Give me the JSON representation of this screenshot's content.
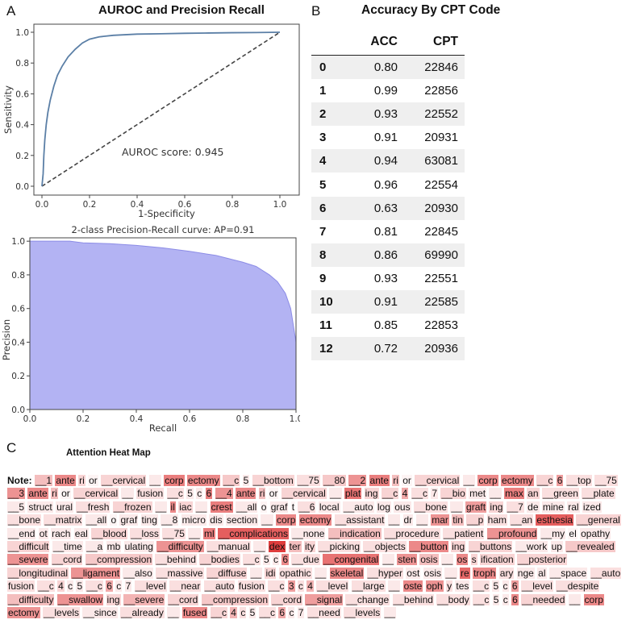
{
  "panels": {
    "a": "A",
    "b": "B",
    "c": "C"
  },
  "chart_data": [
    {
      "type": "line",
      "title": "AUROC and Precision Recall",
      "xlabel": "1-Specificity",
      "ylabel": "Sensitivity",
      "xlim": [
        0,
        1.0
      ],
      "ylim": [
        0,
        1.0
      ],
      "xticks": [
        "0.0",
        "0.2",
        "0.4",
        "0.6",
        "0.8",
        "1.0"
      ],
      "yticks": [
        "0.0",
        "0.2",
        "0.4",
        "0.6",
        "0.8",
        "1.0"
      ],
      "annotation": "AUROC score: 0.945",
      "series": [
        {
          "values": [
            [
              0,
              0
            ],
            [
              0.005,
              0.08
            ],
            [
              0.008,
              0.2
            ],
            [
              0.012,
              0.3
            ],
            [
              0.018,
              0.4
            ],
            [
              0.025,
              0.48
            ],
            [
              0.035,
              0.56
            ],
            [
              0.05,
              0.65
            ],
            [
              0.065,
              0.72
            ],
            [
              0.085,
              0.78
            ],
            [
              0.11,
              0.84
            ],
            [
              0.14,
              0.89
            ],
            [
              0.17,
              0.93
            ],
            [
              0.2,
              0.955
            ],
            [
              0.24,
              0.97
            ],
            [
              0.3,
              0.98
            ],
            [
              0.4,
              0.988
            ],
            [
              0.5,
              0.99
            ],
            [
              0.6,
              0.993
            ],
            [
              0.7,
              0.995
            ],
            [
              0.8,
              0.997
            ],
            [
              0.9,
              0.998
            ],
            [
              1.0,
              1.0
            ]
          ]
        },
        {
          "values": [
            [
              0,
              0
            ],
            [
              1,
              1
            ]
          ]
        }
      ]
    },
    {
      "type": "area",
      "title": "2-class Precision-Recall curve: AP=0.91",
      "xlabel": "Recall",
      "ylabel": "Precision",
      "xlim": [
        0,
        1.0
      ],
      "ylim": [
        0,
        1.02
      ],
      "xticks": [
        "0.0",
        "0.2",
        "0.4",
        "0.6",
        "0.8",
        "1.0"
      ],
      "yticks": [
        "0.0",
        "0.2",
        "0.4",
        "0.6",
        "0.8",
        "1.0"
      ],
      "series": [
        {
          "values": [
            [
              0,
              1.0
            ],
            [
              0.15,
              1.0
            ],
            [
              0.2,
              0.99
            ],
            [
              0.3,
              0.985
            ],
            [
              0.4,
              0.975
            ],
            [
              0.5,
              0.96
            ],
            [
              0.6,
              0.94
            ],
            [
              0.7,
              0.915
            ],
            [
              0.8,
              0.875
            ],
            [
              0.85,
              0.85
            ],
            [
              0.9,
              0.8
            ],
            [
              0.93,
              0.76
            ],
            [
              0.96,
              0.69
            ],
            [
              0.98,
              0.6
            ],
            [
              0.99,
              0.5
            ],
            [
              1.0,
              0.4
            ]
          ]
        }
      ]
    },
    {
      "type": "table",
      "title": "Accuracy By CPT Code",
      "columns": [
        "",
        "ACC",
        "CPT"
      ],
      "rows": [
        [
          "0",
          "0.80",
          "22846"
        ],
        [
          "1",
          "0.99",
          "22856"
        ],
        [
          "2",
          "0.93",
          "22552"
        ],
        [
          "3",
          "0.91",
          "20931"
        ],
        [
          "4",
          "0.94",
          "63081"
        ],
        [
          "5",
          "0.96",
          "22554"
        ],
        [
          "6",
          "0.63",
          "20930"
        ],
        [
          "7",
          "0.81",
          "22845"
        ],
        [
          "8",
          "0.86",
          "69990"
        ],
        [
          "9",
          "0.93",
          "22551"
        ],
        [
          "10",
          "0.91",
          "22585"
        ],
        [
          "11",
          "0.85",
          "22853"
        ],
        [
          "12",
          "0.72",
          "20936"
        ]
      ]
    }
  ],
  "heatmap": {
    "title": "Attention Heat Map",
    "note_label": "Note:",
    "tokens": [
      [
        "__1",
        0.3
      ],
      [
        "ante",
        0.55
      ],
      [
        "ri",
        0.2
      ],
      [
        "or",
        0.05
      ],
      [
        "__cervical",
        0.2
      ],
      [
        "__",
        0.1
      ],
      [
        "corp",
        0.6
      ],
      [
        "ectomy",
        0.55
      ],
      [
        "__c",
        0.25
      ],
      [
        "5",
        0.1
      ],
      [
        "__bottom",
        0.2
      ],
      [
        "__75",
        0.15
      ],
      [
        "__80",
        0.25
      ],
      [
        "__2",
        0.5
      ],
      [
        "ante",
        0.6
      ],
      [
        "ri",
        0.3
      ],
      [
        "or",
        0.05
      ],
      [
        "__cervical",
        0.2
      ],
      [
        "__",
        0.1
      ],
      [
        "corp",
        0.55
      ],
      [
        "ectomy",
        0.55
      ],
      [
        "__c",
        0.2
      ],
      [
        "6",
        0.45
      ],
      [
        "__top",
        0.15
      ],
      [
        "__75",
        0.15
      ],
      [
        "__3",
        0.5
      ],
      [
        "ante",
        0.55
      ],
      [
        "ri",
        0.3
      ],
      [
        "or",
        0.05
      ],
      [
        "__cervical",
        0.2
      ],
      [
        "__",
        0.1
      ],
      [
        "fusion",
        0.15
      ],
      [
        "__c",
        0.15
      ],
      [
        "5",
        0.1
      ],
      [
        "c",
        0.1
      ],
      [
        "6",
        0.6
      ],
      [
        "__4",
        0.5
      ],
      [
        "ante",
        0.55
      ],
      [
        "ri",
        0.3
      ],
      [
        "or",
        0.05
      ],
      [
        "__cervical",
        0.2
      ],
      [
        "__",
        0.1
      ],
      [
        "plat",
        0.65
      ],
      [
        "ing",
        0.2
      ],
      [
        "__c",
        0.2
      ],
      [
        "4",
        0.4
      ],
      [
        "__c",
        0.15
      ],
      [
        "7",
        0.1
      ],
      [
        "__bio",
        0.2
      ],
      [
        "met",
        0.1
      ],
      [
        "__",
        0.1
      ],
      [
        "max",
        0.6
      ],
      [
        "an",
        0.2
      ],
      [
        "__green",
        0.15
      ],
      [
        "__plate",
        0.15
      ],
      [
        "__5",
        0.1
      ],
      [
        "struct",
        0.1
      ],
      [
        "ural",
        0.1
      ],
      [
        "__fresh",
        0.15
      ],
      [
        "__frozen",
        0.2
      ],
      [
        "__",
        0.1
      ],
      [
        "il",
        0.55
      ],
      [
        "iac",
        0.2
      ],
      [
        "__",
        0.1
      ],
      [
        "crest",
        0.6
      ],
      [
        "__all",
        0.1
      ],
      [
        "o",
        0.05
      ],
      [
        "graf",
        0.1
      ],
      [
        "t",
        0.05
      ],
      [
        "__6",
        0.15
      ],
      [
        "local",
        0.1
      ],
      [
        "__auto",
        0.1
      ],
      [
        "log",
        0.1
      ],
      [
        "ous",
        0.1
      ],
      [
        "__bone",
        0.15
      ],
      [
        "__",
        0.1
      ],
      [
        "graft",
        0.45
      ],
      [
        "ing",
        0.2
      ],
      [
        "__7",
        0.15
      ],
      [
        "de",
        0.1
      ],
      [
        "mine",
        0.1
      ],
      [
        "ral",
        0.1
      ],
      [
        "ized",
        0.1
      ],
      [
        "__bone",
        0.15
      ],
      [
        "__matrix",
        0.15
      ],
      [
        "__all",
        0.1
      ],
      [
        "o",
        0.05
      ],
      [
        "graf",
        0.1
      ],
      [
        "ting",
        0.1
      ],
      [
        "__8",
        0.1
      ],
      [
        "micro",
        0.1
      ],
      [
        "dis",
        0.1
      ],
      [
        "section",
        0.1
      ],
      [
        "__",
        0.1
      ],
      [
        "corp",
        0.55
      ],
      [
        "ectomy",
        0.55
      ],
      [
        "__assistant",
        0.15
      ],
      [
        "__",
        0.1
      ],
      [
        "dr",
        0.1
      ],
      [
        "__",
        0.1
      ],
      [
        "mar",
        0.5
      ],
      [
        "tin",
        0.3
      ],
      [
        "__p",
        0.2
      ],
      [
        "ham",
        0.15
      ],
      [
        "__an",
        0.15
      ],
      [
        "esthesia",
        0.75
      ],
      [
        "__general",
        0.2
      ],
      [
        "__end",
        0.1
      ],
      [
        "ot",
        0.1
      ],
      [
        "rach",
        0.1
      ],
      [
        "eal",
        0.1
      ],
      [
        "__blood",
        0.2
      ],
      [
        "__loss",
        0.15
      ],
      [
        "__75",
        0.15
      ],
      [
        "__",
        0.1
      ],
      [
        "ml",
        0.6
      ],
      [
        "__complications",
        0.75
      ],
      [
        "__none",
        0.1
      ],
      [
        "__indication",
        0.3
      ],
      [
        "__procedure",
        0.15
      ],
      [
        "__patient",
        0.15
      ],
      [
        "__profound",
        0.5
      ],
      [
        "__my",
        0.1
      ],
      [
        "el",
        0.05
      ],
      [
        "opathy",
        0.1
      ],
      [
        "__difficult",
        0.2
      ],
      [
        "__time",
        0.1
      ],
      [
        "__a",
        0.1
      ],
      [
        "mb",
        0.1
      ],
      [
        "ulating",
        0.1
      ],
      [
        "__difficulty",
        0.5
      ],
      [
        "__manual",
        0.15
      ],
      [
        "__",
        0.1
      ],
      [
        "dex",
        0.9
      ],
      [
        "ter",
        0.3
      ],
      [
        "ity",
        0.2
      ],
      [
        "__picking",
        0.15
      ],
      [
        "__objects",
        0.15
      ],
      [
        "__button",
        0.55
      ],
      [
        "ing",
        0.2
      ],
      [
        "__buttons",
        0.2
      ],
      [
        "__work",
        0.1
      ],
      [
        "up",
        0.1
      ],
      [
        "__revealed",
        0.25
      ],
      [
        "__severe",
        0.5
      ],
      [
        "__cord",
        0.2
      ],
      [
        "__compression",
        0.25
      ],
      [
        "__behind",
        0.15
      ],
      [
        "__bodies",
        0.2
      ],
      [
        "__c",
        0.15
      ],
      [
        "5",
        0.1
      ],
      [
        "c",
        0.1
      ],
      [
        "6",
        0.55
      ],
      [
        "__due",
        0.15
      ],
      [
        "__congenital",
        0.65
      ],
      [
        "__",
        0.1
      ],
      [
        "sten",
        0.5
      ],
      [
        "osis",
        0.3
      ],
      [
        "__",
        0.1
      ],
      [
        "os",
        0.55
      ],
      [
        "s",
        0.2
      ],
      [
        "ification",
        0.2
      ],
      [
        "__posterior",
        0.2
      ],
      [
        "__longitudinal",
        0.2
      ],
      [
        "__ligament",
        0.5
      ],
      [
        "__also",
        0.1
      ],
      [
        "__massive",
        0.15
      ],
      [
        "__diffuse",
        0.2
      ],
      [
        "__",
        0.1
      ],
      [
        "idi",
        0.2
      ],
      [
        "opathic",
        0.15
      ],
      [
        "__",
        0.1
      ],
      [
        "skeletal",
        0.55
      ],
      [
        "__hyper",
        0.15
      ],
      [
        "ost",
        0.1
      ],
      [
        "osis",
        0.1
      ],
      [
        "__",
        0.1
      ],
      [
        "re",
        0.7
      ],
      [
        "troph",
        0.55
      ],
      [
        "ary",
        0.15
      ],
      [
        "nge",
        0.1
      ],
      [
        "al",
        0.1
      ],
      [
        "__space",
        0.1
      ],
      [
        "__auto",
        0.15
      ],
      [
        "fusion",
        0.15
      ],
      [
        "__c",
        0.15
      ],
      [
        "4",
        0.2
      ],
      [
        "c",
        0.1
      ],
      [
        "5",
        0.1
      ],
      [
        "__c",
        0.15
      ],
      [
        "6",
        0.4
      ],
      [
        "c",
        0.1
      ],
      [
        "7",
        0.1
      ],
      [
        "__level",
        0.15
      ],
      [
        "__near",
        0.15
      ],
      [
        "__auto",
        0.15
      ],
      [
        "fusion",
        0.15
      ],
      [
        "__c",
        0.15
      ],
      [
        "3",
        0.45
      ],
      [
        "c",
        0.15
      ],
      [
        "4",
        0.35
      ],
      [
        "__level",
        0.15
      ],
      [
        "__large",
        0.15
      ],
      [
        "__",
        0.1
      ],
      [
        "oste",
        0.55
      ],
      [
        "oph",
        0.5
      ],
      [
        "y",
        0.15
      ],
      [
        "tes",
        0.1
      ],
      [
        "__c",
        0.15
      ],
      [
        "5",
        0.1
      ],
      [
        "c",
        0.1
      ],
      [
        "6",
        0.45
      ],
      [
        "__level",
        0.15
      ],
      [
        "__despite",
        0.15
      ],
      [
        "__difficulty",
        0.3
      ],
      [
        "__swallow",
        0.5
      ],
      [
        "ing",
        0.2
      ],
      [
        "__severe",
        0.35
      ],
      [
        "__cord",
        0.2
      ],
      [
        "__compression",
        0.25
      ],
      [
        "__cord",
        0.2
      ],
      [
        "__signal",
        0.45
      ],
      [
        "__change",
        0.15
      ],
      [
        "__behind",
        0.15
      ],
      [
        "__body",
        0.15
      ],
      [
        "__c",
        0.15
      ],
      [
        "5",
        0.1
      ],
      [
        "c",
        0.1
      ],
      [
        "6",
        0.55
      ],
      [
        "__needed",
        0.2
      ],
      [
        "__",
        0.1
      ],
      [
        "corp",
        0.55
      ],
      [
        "ectomy",
        0.5
      ],
      [
        "__levels",
        0.15
      ],
      [
        "__since",
        0.1
      ],
      [
        "__already",
        0.15
      ],
      [
        "__",
        0.1
      ],
      [
        "fused",
        0.55
      ],
      [
        "__c",
        0.2
      ],
      [
        "4",
        0.35
      ],
      [
        "c",
        0.15
      ],
      [
        "5",
        0.1
      ],
      [
        "__c",
        0.15
      ],
      [
        "6",
        0.4
      ],
      [
        "c",
        0.1
      ],
      [
        "7",
        0.1
      ],
      [
        "__need",
        0.15
      ],
      [
        "__levels",
        0.15
      ],
      [
        "__",
        0.1
      ]
    ]
  },
  "colors": {
    "roc_line": "#5b7fa6",
    "pr_fill": "#b3b3f3",
    "pr_edge": "#8c8ce6",
    "heat": "#dc2828"
  }
}
